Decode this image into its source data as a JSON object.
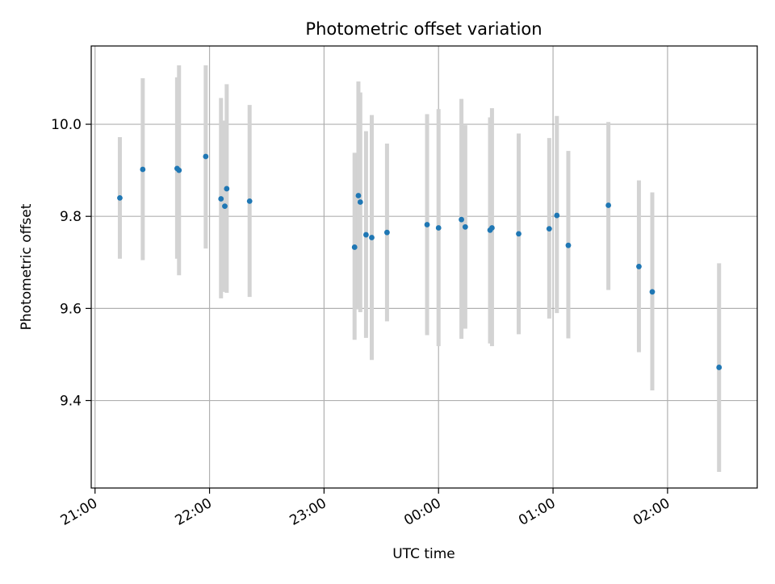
{
  "chart_data": {
    "type": "scatter",
    "title": "Photometric offset variation",
    "xlabel": "UTC time",
    "ylabel": "Photometric offset",
    "x_unit": "UTC time (HH:MM), crossing midnight",
    "x_ticks": [
      "21:00",
      "22:00",
      "23:00",
      "00:00",
      "01:00",
      "02:00"
    ],
    "y_ticks": [
      "9.4",
      "9.6",
      "9.8",
      "10.0"
    ],
    "xlim": [
      "20:58",
      "02:47"
    ],
    "ylim": [
      9.21,
      10.17
    ],
    "grid": true,
    "colors": {
      "point": "#1f77b4",
      "errorbar": "#d3d3d3",
      "grid": "#b0b0b0",
      "axes": "#000000"
    },
    "points": [
      {
        "x": "21:13",
        "y": 9.84,
        "y_low": 9.708,
        "y_high": 9.972
      },
      {
        "x": "21:25",
        "y": 9.902,
        "y_low": 9.705,
        "y_high": 10.1
      },
      {
        "x": "21:43",
        "y": 9.904,
        "y_low": 9.708,
        "y_high": 10.102
      },
      {
        "x": "21:44",
        "y": 9.9,
        "y_low": 9.672,
        "y_high": 10.128
      },
      {
        "x": "21:58",
        "y": 9.93,
        "y_low": 9.73,
        "y_high": 10.128
      },
      {
        "x": "22:06",
        "y": 9.838,
        "y_low": 9.622,
        "y_high": 10.057
      },
      {
        "x": "22:08",
        "y": 9.822,
        "y_low": 9.636,
        "y_high": 10.008
      },
      {
        "x": "22:09",
        "y": 9.86,
        "y_low": 9.634,
        "y_high": 10.087
      },
      {
        "x": "22:21",
        "y": 9.833,
        "y_low": 9.625,
        "y_high": 10.042
      },
      {
        "x": "23:16",
        "y": 9.733,
        "y_low": 9.532,
        "y_high": 9.938
      },
      {
        "x": "23:18",
        "y": 9.845,
        "y_low": 9.598,
        "y_high": 10.093
      },
      {
        "x": "23:19",
        "y": 9.831,
        "y_low": 9.592,
        "y_high": 10.069
      },
      {
        "x": "23:22",
        "y": 9.76,
        "y_low": 9.536,
        "y_high": 9.985
      },
      {
        "x": "23:25",
        "y": 9.754,
        "y_low": 9.488,
        "y_high": 10.02
      },
      {
        "x": "23:33",
        "y": 9.765,
        "y_low": 9.572,
        "y_high": 9.958
      },
      {
        "x": "23:54",
        "y": 9.782,
        "y_low": 9.542,
        "y_high": 10.022
      },
      {
        "x": "00:00",
        "y": 9.775,
        "y_low": 9.518,
        "y_high": 10.033
      },
      {
        "x": "00:12",
        "y": 9.793,
        "y_low": 9.534,
        "y_high": 10.055
      },
      {
        "x": "00:14",
        "y": 9.777,
        "y_low": 9.556,
        "y_high": 9.998
      },
      {
        "x": "00:27",
        "y": 9.77,
        "y_low": 9.524,
        "y_high": 10.015
      },
      {
        "x": "00:28",
        "y": 9.775,
        "y_low": 9.518,
        "y_high": 10.035
      },
      {
        "x": "00:42",
        "y": 9.762,
        "y_low": 9.544,
        "y_high": 9.98
      },
      {
        "x": "00:58",
        "y": 9.773,
        "y_low": 9.578,
        "y_high": 9.97
      },
      {
        "x": "01:02",
        "y": 9.802,
        "y_low": 9.59,
        "y_high": 10.018
      },
      {
        "x": "01:08",
        "y": 9.737,
        "y_low": 9.535,
        "y_high": 9.942
      },
      {
        "x": "01:29",
        "y": 9.824,
        "y_low": 9.64,
        "y_high": 10.005
      },
      {
        "x": "01:45",
        "y": 9.691,
        "y_low": 9.505,
        "y_high": 9.878
      },
      {
        "x": "01:52",
        "y": 9.636,
        "y_low": 9.422,
        "y_high": 9.852
      },
      {
        "x": "02:27",
        "y": 9.472,
        "y_low": 9.245,
        "y_high": 9.698
      }
    ]
  }
}
